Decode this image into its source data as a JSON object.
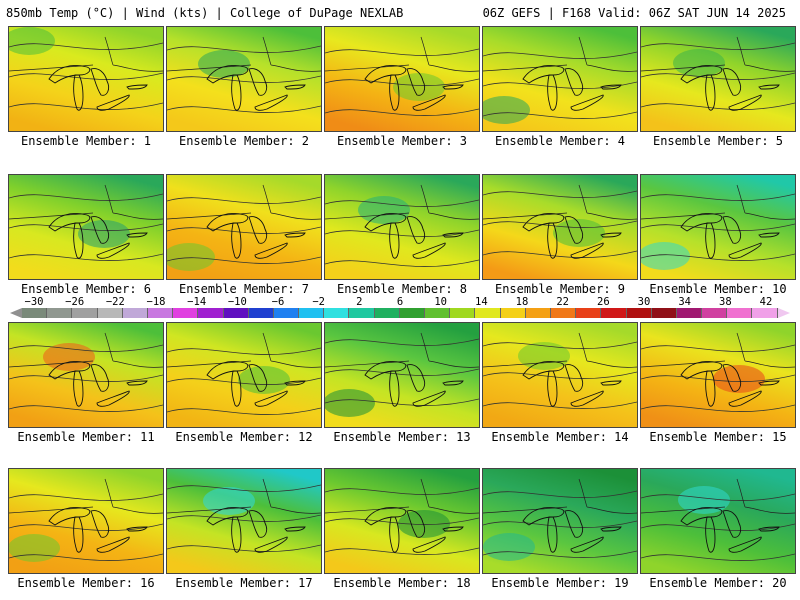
{
  "header": {
    "left": "850mb Temp (°C) | Wind (kts) | College of DuPage NEXLAB",
    "right": "06Z GEFS | F168 Valid: 06Z SAT JUN 14 2025"
  },
  "members": [
    {
      "label": "Ensemble Member: 1",
      "palette": [
        "#8fd42b",
        "#d9ea1e",
        "#f4d31a",
        "#f2b214"
      ],
      "accent": "#4dbf3a"
    },
    {
      "label": "Ensemble Member: 2",
      "palette": [
        "#4dbf3a",
        "#b6e12a",
        "#f4e01c",
        "#f4c81a"
      ],
      "accent": "#2aa85a"
    },
    {
      "label": "Ensemble Member: 3",
      "palette": [
        "#a5da2a",
        "#e8e81e",
        "#f4b414",
        "#f08c16"
      ],
      "accent": "#6ac830"
    },
    {
      "label": "Ensemble Member: 4",
      "palette": [
        "#4dbf3a",
        "#a8dc2a",
        "#f2e21c",
        "#f4c81a"
      ],
      "accent": "#2aa85a"
    },
    {
      "label": "Ensemble Member: 5",
      "palette": [
        "#2aa85a",
        "#8fd42b",
        "#e6e81e",
        "#f4c21a"
      ],
      "accent": "#3cb44a"
    },
    {
      "label": "Ensemble Member: 6",
      "palette": [
        "#2aa85a",
        "#7fd02c",
        "#d8e820",
        "#f2dc1c"
      ],
      "accent": "#24a070"
    },
    {
      "label": "Ensemble Member: 7",
      "palette": [
        "#a5da2a",
        "#f0e01c",
        "#f4b414",
        "#f2a014"
      ],
      "accent": "#6ac830"
    },
    {
      "label": "Ensemble Member: 8",
      "palette": [
        "#2aa85a",
        "#8fd42b",
        "#e0e81e",
        "#f4d01a"
      ],
      "accent": "#22b07a"
    },
    {
      "label": "Ensemble Member: 9",
      "palette": [
        "#2aa85a",
        "#a8dc2a",
        "#f4d81a",
        "#f49a16"
      ],
      "accent": "#4dbf3a"
    },
    {
      "label": "Ensemble Member: 10",
      "palette": [
        "#20c8a8",
        "#5ac640",
        "#b6e12a",
        "#f2dc1c"
      ],
      "accent": "#2fd8c8"
    },
    {
      "label": "Ensemble Member: 11",
      "palette": [
        "#4dbf3a",
        "#c4e424",
        "#f4c21a",
        "#f2a014"
      ],
      "accent": "#f05a1a"
    },
    {
      "label": "Ensemble Member: 12",
      "palette": [
        "#6ac830",
        "#d0e622",
        "#f4d01a",
        "#f2b414"
      ],
      "accent": "#4dbf3a"
    },
    {
      "label": "Ensemble Member: 13",
      "palette": [
        "#24a040",
        "#5ac640",
        "#c4e424",
        "#f2dc1c"
      ],
      "accent": "#1c9038"
    },
    {
      "label": "Ensemble Member: 14",
      "palette": [
        "#a5da2a",
        "#e6e81e",
        "#f4c21a",
        "#f2a814"
      ],
      "accent": "#6ac830"
    },
    {
      "label": "Ensemble Member: 15",
      "palette": [
        "#8fd42b",
        "#eae41e",
        "#f4b414",
        "#f09016"
      ],
      "accent": "#e8461a"
    },
    {
      "label": "Ensemble Member: 16",
      "palette": [
        "#8fd42b",
        "#e6e81e",
        "#f4b414",
        "#f2a014"
      ],
      "accent": "#6ac830"
    },
    {
      "label": "Ensemble Member: 17",
      "palette": [
        "#20c8c8",
        "#4dbf3a",
        "#c4e424",
        "#f4c81a"
      ],
      "accent": "#2fd8e0"
    },
    {
      "label": "Ensemble Member: 18",
      "palette": [
        "#24a040",
        "#6ac830",
        "#d8e820",
        "#f4c81a"
      ],
      "accent": "#1c9038"
    },
    {
      "label": "Ensemble Member: 19",
      "palette": [
        "#1c9038",
        "#2aa85a",
        "#5ac640",
        "#a8dc2a"
      ],
      "accent": "#20b890"
    },
    {
      "label": "Ensemble Member: 20",
      "palette": [
        "#20b890",
        "#2aa85a",
        "#4dbf3a",
        "#8fd42b"
      ],
      "accent": "#2fd8d0"
    }
  ],
  "colorbar": {
    "labels": [
      "-30",
      "-26",
      "-22",
      "-18",
      "-14",
      "-10",
      "-6",
      "-2",
      "2",
      "6",
      "10",
      "14",
      "18",
      "22",
      "26",
      "30",
      "34",
      "38",
      "42"
    ],
    "colors": [
      "#7a8a7a",
      "#909890",
      "#a0a0a0",
      "#b8b8b8",
      "#c0a8d8",
      "#c878e0",
      "#e040e0",
      "#a020d0",
      "#6010c0",
      "#2040d0",
      "#2080f0",
      "#20c0f0",
      "#30e0e0",
      "#20c8a0",
      "#20b060",
      "#30a030",
      "#60c030",
      "#a0d820",
      "#e0e820",
      "#f4d018",
      "#f4a014",
      "#f07818",
      "#e84018",
      "#d01818",
      "#b01010",
      "#901018",
      "#a01870",
      "#d040a0",
      "#f070d0",
      "#f0a0e8"
    ]
  }
}
